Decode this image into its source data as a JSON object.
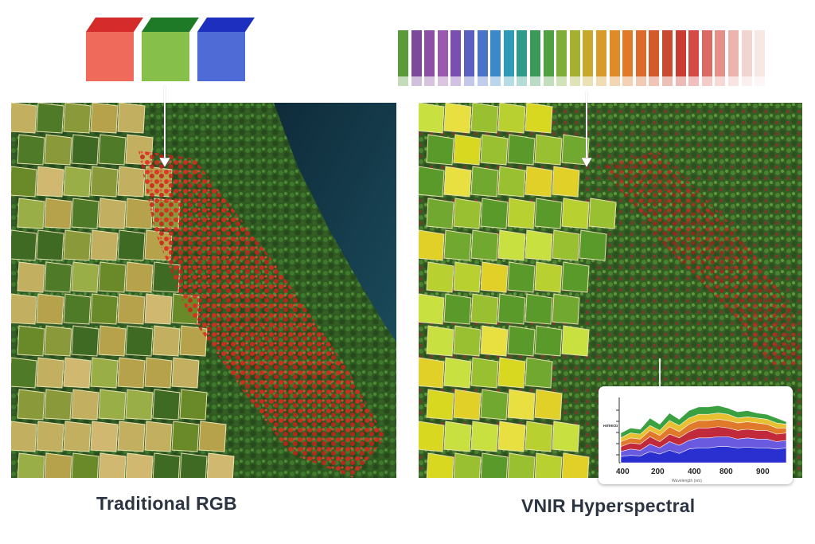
{
  "captions": {
    "left": "Traditional RGB",
    "right": "VNIR Hyperspectral"
  },
  "rgb_bands": [
    {
      "name": "red-band",
      "top": "#d52b2b",
      "face": "#ef6a5a"
    },
    {
      "name": "green-band",
      "top": "#1f7a27",
      "face": "#86bf4a"
    },
    {
      "name": "blue-band",
      "top": "#1d2fbf",
      "face": "#4e6bd6"
    }
  ],
  "spectrum_colors": [
    "#5a9a3a",
    "#7b4a9a",
    "#8c4fa6",
    "#9a5ab0",
    "#7a4fb0",
    "#5a5fc0",
    "#4b73c8",
    "#3c88c8",
    "#2f9ab8",
    "#2e9a8a",
    "#3a9a5a",
    "#4fa040",
    "#7fae38",
    "#a6b030",
    "#c8a82c",
    "#d89a2a",
    "#e08a28",
    "#e07a28",
    "#dc6a2a",
    "#d45a2c",
    "#c84a30",
    "#c83c34",
    "#d44a44",
    "#dc6a64",
    "#e49088",
    "#ecb4ae",
    "#f2d4d0",
    "#f7e8e6"
  ],
  "chart_data": {
    "type": "area",
    "x_ticks": [
      "400",
      "200",
      "400",
      "800",
      "900"
    ],
    "ylabel": "Reflectance",
    "xlabel": "Wavelength (nm)",
    "series": [
      {
        "color": "#2a2fd0",
        "values": [
          10,
          12,
          11,
          18,
          14,
          20,
          15,
          22,
          24,
          24,
          26,
          26,
          24,
          25,
          24,
          24,
          22,
          24
        ]
      },
      {
        "color": "#6a5ae0",
        "values": [
          18,
          22,
          20,
          30,
          24,
          34,
          28,
          36,
          40,
          40,
          42,
          42,
          38,
          40,
          38,
          38,
          34,
          36
        ]
      },
      {
        "color": "#c02a3a",
        "values": [
          26,
          32,
          30,
          42,
          34,
          46,
          40,
          50,
          56,
          56,
          58,
          56,
          52,
          54,
          52,
          52,
          46,
          48
        ]
      },
      {
        "color": "#e07a2a",
        "values": [
          34,
          40,
          38,
          52,
          44,
          58,
          50,
          62,
          68,
          68,
          70,
          68,
          64,
          66,
          64,
          62,
          56,
          56
        ]
      },
      {
        "color": "#e8c030",
        "values": [
          40,
          48,
          46,
          60,
          52,
          68,
          60,
          72,
          78,
          78,
          80,
          78,
          72,
          74,
          72,
          70,
          64,
          62
        ]
      },
      {
        "color": "#3aa040",
        "values": [
          48,
          56,
          54,
          72,
          62,
          80,
          70,
          84,
          90,
          90,
          92,
          88,
          82,
          84,
          80,
          78,
          72,
          66
        ]
      }
    ]
  }
}
